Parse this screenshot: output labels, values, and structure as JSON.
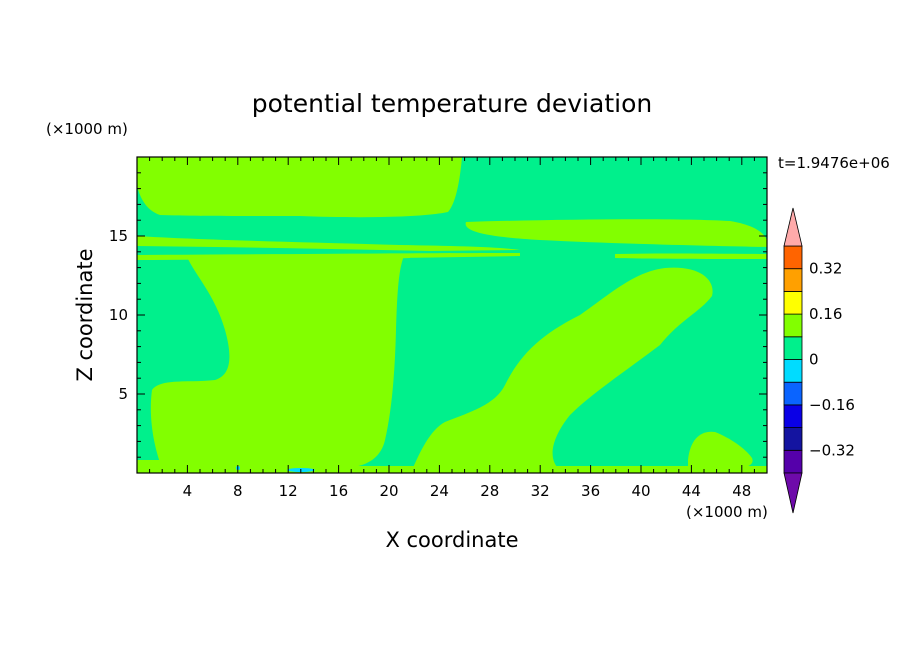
{
  "chart_data": {
    "type": "heatmap",
    "title": "potential temperature deviation",
    "xlabel": "X coordinate",
    "ylabel": "Z coordinate",
    "x_unit": "(×1000 m)",
    "z_unit": "(×1000 m)",
    "time_label": "t=1.9476e+06",
    "xlim": [
      0,
      50
    ],
    "ylim": [
      0,
      20
    ],
    "x_ticks": [
      4,
      8,
      12,
      16,
      20,
      24,
      28,
      32,
      36,
      40,
      44,
      48
    ],
    "y_ticks": [
      5,
      10,
      15
    ],
    "colorbar": {
      "levels": [
        -0.4,
        -0.32,
        -0.24,
        -0.16,
        -0.08,
        0,
        0.08,
        0.16,
        0.24,
        0.32,
        0.4
      ],
      "colors": [
        "#5500aa",
        "#1414a0",
        "#0a00e6",
        "#0a64ff",
        "#00dcff",
        "#00f08c",
        "#82ff00",
        "#ffff00",
        "#ffa000",
        "#ff6400",
        "#ff2020"
      ],
      "under_color": "#6e0aaa",
      "over_color": "#ffaaaa",
      "tick_values": [
        0.32,
        0.16,
        0,
        -0.16,
        -0.32
      ],
      "tick_labels": [
        "0.32",
        "0.16",
        "0",
        "−0.16",
        "−0.32"
      ]
    },
    "background_value_color": "#00f08c",
    "positive_region_color": "#82ff00"
  }
}
